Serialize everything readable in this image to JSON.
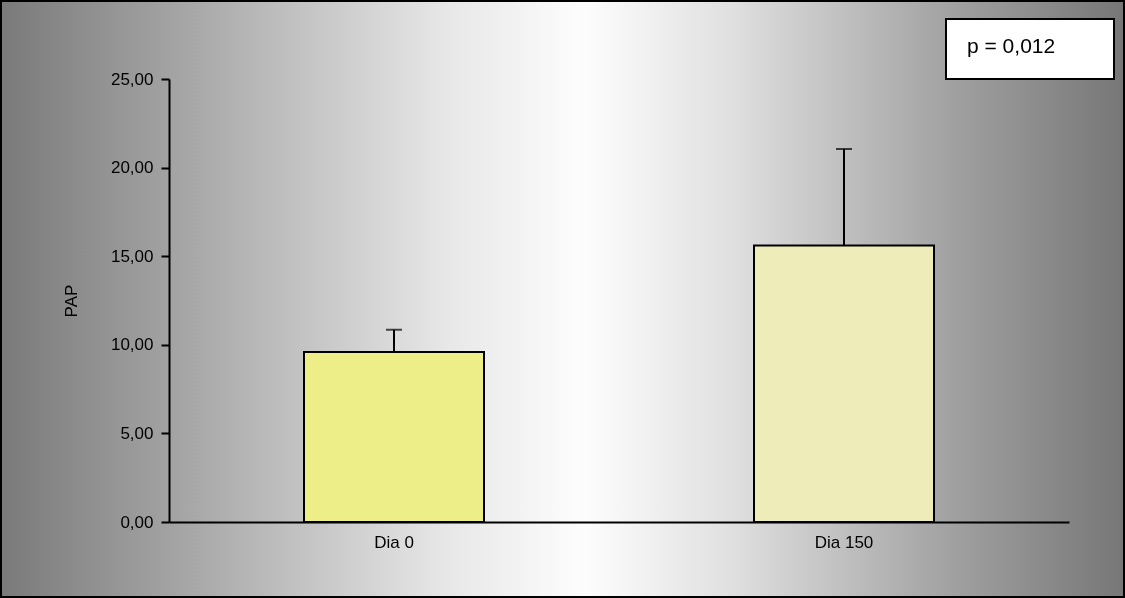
{
  "chart_data": {
    "type": "bar",
    "ylabel": "PAP",
    "categories": [
      "Dia 0",
      "Dia 150"
    ],
    "values": [
      9.6,
      15.6
    ],
    "colors": [
      "#eeee88",
      "#eeecb8"
    ],
    "errors": [
      [
        9.6,
        10.85
      ],
      [
        15.6,
        21.05
      ]
    ],
    "ylim": [
      0,
      25
    ],
    "yticks": [
      {
        "value": 0,
        "label": "0,00"
      },
      {
        "value": 5,
        "label": "5,00"
      },
      {
        "value": 10,
        "label": "10,00"
      },
      {
        "value": 15,
        "label": "15,00"
      },
      {
        "value": 20,
        "label": "20,00"
      },
      {
        "value": 25,
        "label": "25,00"
      }
    ],
    "annotations": [
      "p = 0,012"
    ],
    "grid": false
  }
}
